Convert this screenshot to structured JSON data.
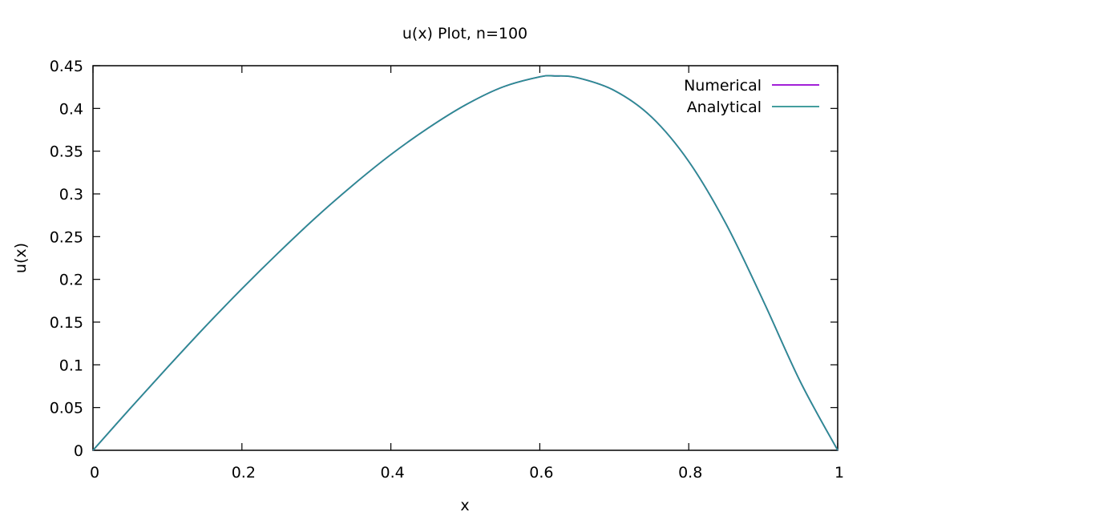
{
  "chart_data": {
    "type": "line",
    "title": "u(x) Plot, n=100",
    "xlabel": "x",
    "ylabel": "u(x)",
    "xlim": [
      0,
      1
    ],
    "ylim": [
      0,
      0.45
    ],
    "xticks": [
      0,
      0.2,
      0.4,
      0.6,
      0.8,
      1
    ],
    "xtick_labels": [
      "0",
      "0.2",
      "0.4",
      "0.6",
      "0.8",
      "1"
    ],
    "yticks": [
      0,
      0.05,
      0.1,
      0.15,
      0.2,
      0.25,
      0.3,
      0.35,
      0.4,
      0.45
    ],
    "ytick_labels": [
      "0",
      "0.05",
      "0.1",
      "0.15",
      "0.2",
      "0.25",
      "0.3",
      "0.35",
      "0.4",
      "0.45"
    ],
    "grid": false,
    "legend_position": "top-right",
    "series": [
      {
        "name": "Numerical",
        "color": "#9400d3",
        "x": [
          0,
          0.05,
          0.1,
          0.15,
          0.2,
          0.25,
          0.3,
          0.35,
          0.4,
          0.45,
          0.5,
          0.55,
          0.6,
          0.62,
          0.65,
          0.7,
          0.75,
          0.8,
          0.85,
          0.9,
          0.95,
          1
        ],
        "y": [
          0,
          0.049,
          0.097,
          0.144,
          0.189,
          0.232,
          0.273,
          0.311,
          0.346,
          0.377,
          0.404,
          0.425,
          0.437,
          0.438,
          0.436,
          0.421,
          0.39,
          0.338,
          0.265,
          0.175,
          0.08,
          0
        ]
      },
      {
        "name": "Analytical",
        "color": "#2a9090",
        "x": [
          0,
          0.05,
          0.1,
          0.15,
          0.2,
          0.25,
          0.3,
          0.35,
          0.4,
          0.45,
          0.5,
          0.55,
          0.6,
          0.62,
          0.65,
          0.7,
          0.75,
          0.8,
          0.85,
          0.9,
          0.95,
          1
        ],
        "y": [
          0,
          0.049,
          0.097,
          0.144,
          0.189,
          0.232,
          0.273,
          0.311,
          0.346,
          0.377,
          0.404,
          0.425,
          0.437,
          0.438,
          0.436,
          0.421,
          0.39,
          0.338,
          0.265,
          0.175,
          0.08,
          0
        ]
      }
    ]
  }
}
